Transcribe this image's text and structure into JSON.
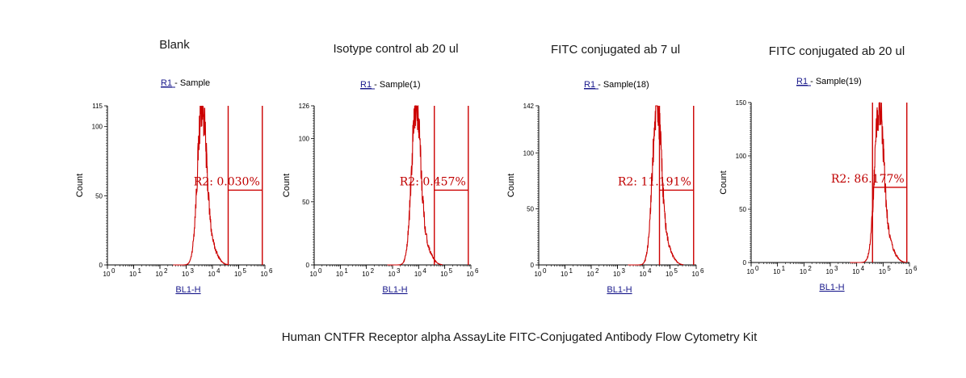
{
  "caption": "Human CNTFR Receptor alpha AssayLite FITC-Conjugated Antibody Flow Cytometry Kit",
  "colors": {
    "histogram": "#cc0000",
    "gate": "#cc0000",
    "axis": "#000000",
    "link": "#1a1a8c"
  },
  "chart_data": [
    {
      "type": "histogram",
      "title": "Blank",
      "gate_link": "R1",
      "gate_name": " - Sample",
      "xlabel": "BL1-H",
      "ylabel": "Count",
      "x_scale": "log",
      "xlim": [
        1,
        1000000
      ],
      "ylim": [
        0,
        115
      ],
      "yticks": [
        0,
        50,
        100,
        115
      ],
      "peak_log10": 3.6,
      "peak_count": 112,
      "region": {
        "name": "R2",
        "label": "R2: 0.030%",
        "value": 0.03,
        "x_log10": [
          4.6,
          5.9
        ]
      }
    },
    {
      "type": "histogram",
      "title": "Isotype control ab 20 ul",
      "gate_link": "R1",
      "gate_name": " - Sample(1)",
      "xlabel": "BL1-H",
      "ylabel": "Count",
      "x_scale": "log",
      "xlim": [
        1,
        1000000
      ],
      "ylim": [
        0,
        126
      ],
      "yticks": [
        0,
        50,
        100,
        126
      ],
      "peak_log10": 3.9,
      "peak_count": 124,
      "region": {
        "name": "R2",
        "label": "R2: 0.457%",
        "value": 0.457,
        "x_log10": [
          4.6,
          5.9
        ]
      }
    },
    {
      "type": "histogram",
      "title": "FITC conjugated ab 7 ul",
      "gate_link": "R1",
      "gate_name": " - Sample(18)",
      "xlabel": "BL1-H",
      "ylabel": "Count",
      "x_scale": "log",
      "xlim": [
        1,
        1000000
      ],
      "ylim": [
        0,
        142
      ],
      "yticks": [
        0,
        50,
        100,
        142
      ],
      "peak_log10": 4.5,
      "peak_count": 138,
      "region": {
        "name": "R2",
        "label": "R2: 11.191%",
        "value": 11.191,
        "x_log10": [
          4.6,
          5.9
        ]
      }
    },
    {
      "type": "histogram",
      "title": "FITC conjugated ab 20 ul",
      "gate_link": "R1",
      "gate_name": " - Sample(19)",
      "xlabel": "BL1-H",
      "ylabel": "Count",
      "x_scale": "log",
      "xlim": [
        1,
        1000000
      ],
      "ylim": [
        0,
        150
      ],
      "yticks": [
        0,
        50,
        100,
        150
      ],
      "peak_log10": 4.85,
      "peak_count": 142,
      "region": {
        "name": "R2",
        "label": "R2: 86.177%",
        "value": 86.177,
        "x_log10": [
          4.6,
          5.9
        ]
      }
    }
  ]
}
